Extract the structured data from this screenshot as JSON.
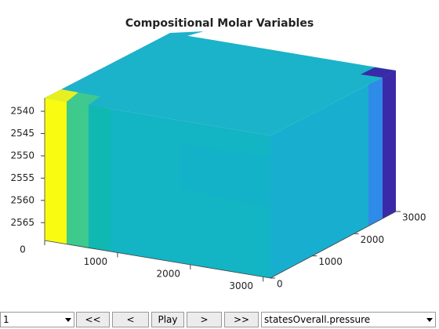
{
  "chart_data": {
    "type": "block3d",
    "title": "Compositional Molar Variables",
    "xlim": [
      0,
      3100
    ],
    "xticks": [
      0,
      1000,
      2000,
      3000
    ],
    "ylim": [
      0,
      3000
    ],
    "yticks": [
      0,
      1000,
      2000,
      3000
    ],
    "zlim": [
      2537,
      2569
    ],
    "zticks": [
      2540,
      2545,
      2550,
      2555,
      2560,
      2565
    ]
  },
  "controls": {
    "step": "1",
    "first": "<<",
    "prev": "<",
    "play": "Play",
    "next": ">",
    "last": ">>",
    "variable": "statesOverall.pressure"
  }
}
